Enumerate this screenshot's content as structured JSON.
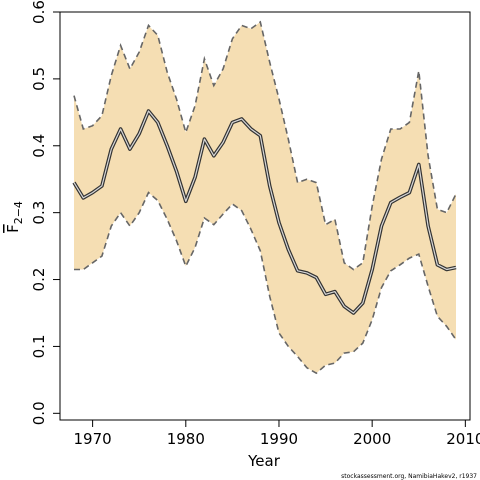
{
  "chart_data": {
    "type": "line",
    "xlabel": "Year",
    "ylabel_main": "F",
    "ylabel_sub": "2−4",
    "xlim": [
      1966.5,
      2010.5
    ],
    "ylim": [
      -0.01,
      0.6
    ],
    "xticks": [
      1970,
      1980,
      1990,
      2000,
      2010
    ],
    "xtick_labels": [
      "1970",
      "1980",
      "1990",
      "2000",
      "2010"
    ],
    "yticks": [
      0.0,
      0.1,
      0.2,
      0.3,
      0.4,
      0.5,
      0.6
    ],
    "ytick_labels": [
      "0.0",
      "0.1",
      "0.2",
      "0.3",
      "0.4",
      "0.5",
      "0.6"
    ],
    "grid": false,
    "colors": {
      "band_fill": "#f5deb3",
      "band_edge": "#666666",
      "line_outer": "#333333",
      "line_inner": "#d8d8d8"
    },
    "x": [
      1968,
      1969,
      1970,
      1971,
      1972,
      1973,
      1974,
      1975,
      1976,
      1977,
      1978,
      1979,
      1980,
      1981,
      1982,
      1983,
      1984,
      1985,
      1986,
      1987,
      1988,
      1989,
      1990,
      1991,
      1992,
      1993,
      1994,
      1995,
      1996,
      1997,
      1998,
      1999,
      2000,
      2001,
      2002,
      2003,
      2004,
      2005,
      2006,
      2007,
      2008,
      2009
    ],
    "series": [
      {
        "role": "estimate",
        "values": [
          0.345,
          0.322,
          0.33,
          0.34,
          0.395,
          0.425,
          0.395,
          0.418,
          0.452,
          0.435,
          0.4,
          0.362,
          0.317,
          0.353,
          0.41,
          0.385,
          0.405,
          0.435,
          0.44,
          0.425,
          0.415,
          0.34,
          0.285,
          0.245,
          0.213,
          0.21,
          0.203,
          0.178,
          0.182,
          0.16,
          0.15,
          0.165,
          0.215,
          0.28,
          0.315,
          0.323,
          0.33,
          0.372,
          0.28,
          0.222,
          0.215,
          0.218
        ]
      },
      {
        "role": "upper",
        "values": [
          0.475,
          0.425,
          0.43,
          0.445,
          0.505,
          0.55,
          0.515,
          0.54,
          0.58,
          0.565,
          0.51,
          0.47,
          0.42,
          0.46,
          0.53,
          0.49,
          0.515,
          0.56,
          0.58,
          0.575,
          0.585,
          0.525,
          0.47,
          0.41,
          0.345,
          0.35,
          0.345,
          0.282,
          0.29,
          0.225,
          0.215,
          0.225,
          0.31,
          0.38,
          0.425,
          0.425,
          0.435,
          0.512,
          0.385,
          0.305,
          0.3,
          0.328
        ]
      },
      {
        "role": "lower",
        "values": [
          0.215,
          0.215,
          0.225,
          0.235,
          0.28,
          0.3,
          0.28,
          0.3,
          0.33,
          0.318,
          0.29,
          0.258,
          0.22,
          0.248,
          0.292,
          0.282,
          0.298,
          0.313,
          0.303,
          0.275,
          0.243,
          0.175,
          0.12,
          0.1,
          0.085,
          0.068,
          0.06,
          0.072,
          0.075,
          0.09,
          0.092,
          0.105,
          0.14,
          0.188,
          0.213,
          0.222,
          0.232,
          0.238,
          0.19,
          0.145,
          0.13,
          0.11
        ]
      }
    ]
  },
  "credit": "stockassessment.org, NamibiaHakev2, r1937"
}
